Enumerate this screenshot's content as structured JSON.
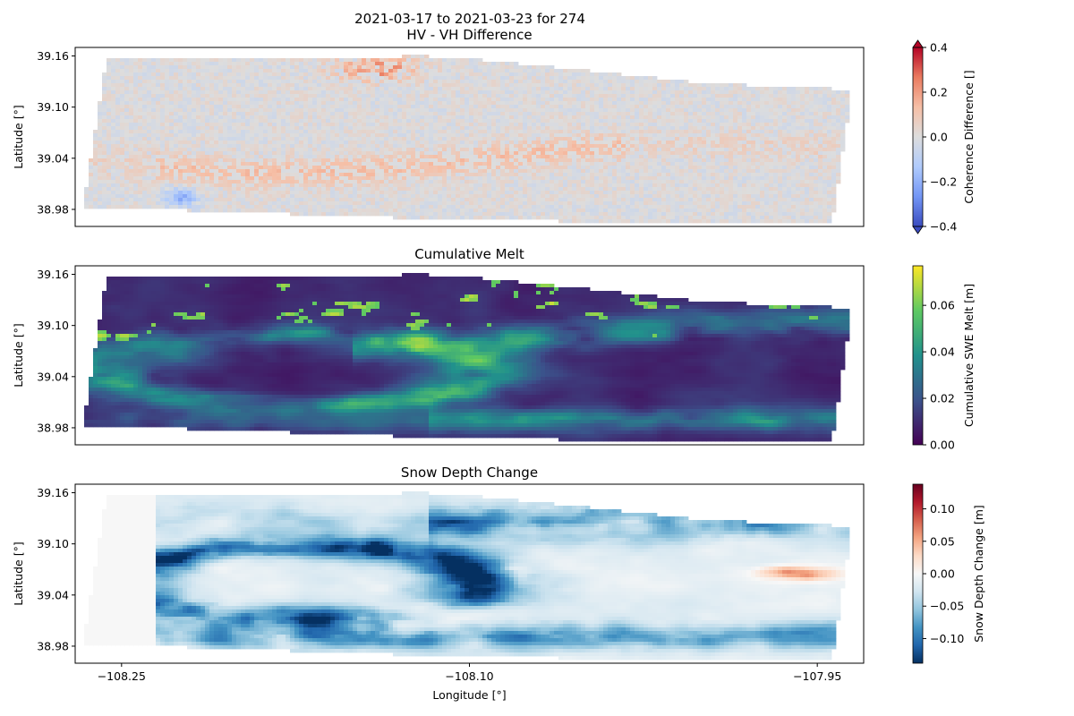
{
  "figure": {
    "title_line1": "2021-03-17 to 2021-03-23 for 274",
    "xlabel": "Longitude [°]"
  },
  "chart_data": [
    {
      "type": "heatmap",
      "title": "HV - VH Difference",
      "ylabel": "Latitude [°]",
      "xlim": [
        -108.27,
        -107.93
      ],
      "ylim": [
        38.96,
        39.17
      ],
      "yticks": [
        38.98,
        39.04,
        39.1,
        39.16
      ],
      "ytick_labels": [
        "38.98",
        "39.04",
        "39.10",
        "39.16"
      ],
      "show_xticks": false,
      "colorbar": {
        "label": "Coherence Difference []",
        "colormap": "coolwarm",
        "range": [
          -0.4,
          0.4
        ],
        "ticks": [
          -0.4,
          -0.2,
          0.0,
          0.2,
          0.4
        ],
        "tick_labels": [
          "−0.4",
          "−0.2",
          "0.0",
          "0.2",
          "0.4"
        ],
        "extend": "both",
        "colors": [
          "#3b4cc0",
          "#7396f5",
          "#b0cbfc",
          "#dddddd",
          "#f6bfa6",
          "#ea7b60",
          "#b40426"
        ]
      }
    },
    {
      "type": "heatmap",
      "title": "Cumulative Melt",
      "ylabel": "Latitude [°]",
      "xlim": [
        -108.27,
        -107.93
      ],
      "ylim": [
        38.96,
        39.17
      ],
      "yticks": [
        38.98,
        39.04,
        39.1,
        39.16
      ],
      "ytick_labels": [
        "38.98",
        "39.04",
        "39.10",
        "39.16"
      ],
      "show_xticks": false,
      "colorbar": {
        "label": "Cumulative SWE Melt [m]",
        "colormap": "viridis",
        "range": [
          0.0,
          0.077
        ],
        "ticks": [
          0.0,
          0.02,
          0.04,
          0.06
        ],
        "tick_labels": [
          "0.00",
          "0.02",
          "0.04",
          "0.06"
        ],
        "extend": "neither",
        "colors": [
          "#440154",
          "#3b528b",
          "#21918c",
          "#5ec962",
          "#fde725"
        ]
      }
    },
    {
      "type": "heatmap",
      "title": "Snow Depth Change",
      "ylabel": "Latitude [°]",
      "xlim": [
        -108.27,
        -107.93
      ],
      "ylim": [
        38.96,
        39.17
      ],
      "yticks": [
        38.98,
        39.04,
        39.1,
        39.16
      ],
      "ytick_labels": [
        "38.98",
        "39.04",
        "39.10",
        "39.16"
      ],
      "show_xticks": true,
      "xticks": [
        -108.25,
        -108.1,
        -107.95
      ],
      "xtick_labels": [
        "−108.25",
        "−108.10",
        "−107.95"
      ],
      "colorbar": {
        "label": "Snow Depth Change [m]",
        "colormap": "RdBu_r",
        "range": [
          -0.138,
          0.138
        ],
        "ticks": [
          -0.1,
          -0.05,
          0.0,
          0.05,
          0.1
        ],
        "tick_labels": [
          "−0.10",
          "−0.05",
          "0.00",
          "0.05",
          "0.10"
        ],
        "extend": "neither",
        "colors": [
          "#053061",
          "#2166ac",
          "#4393c3",
          "#92c5de",
          "#d1e5f0",
          "#f7f7f7",
          "#fddbc7",
          "#f4a582",
          "#d6604d",
          "#b2182b",
          "#67001f"
        ]
      }
    }
  ]
}
